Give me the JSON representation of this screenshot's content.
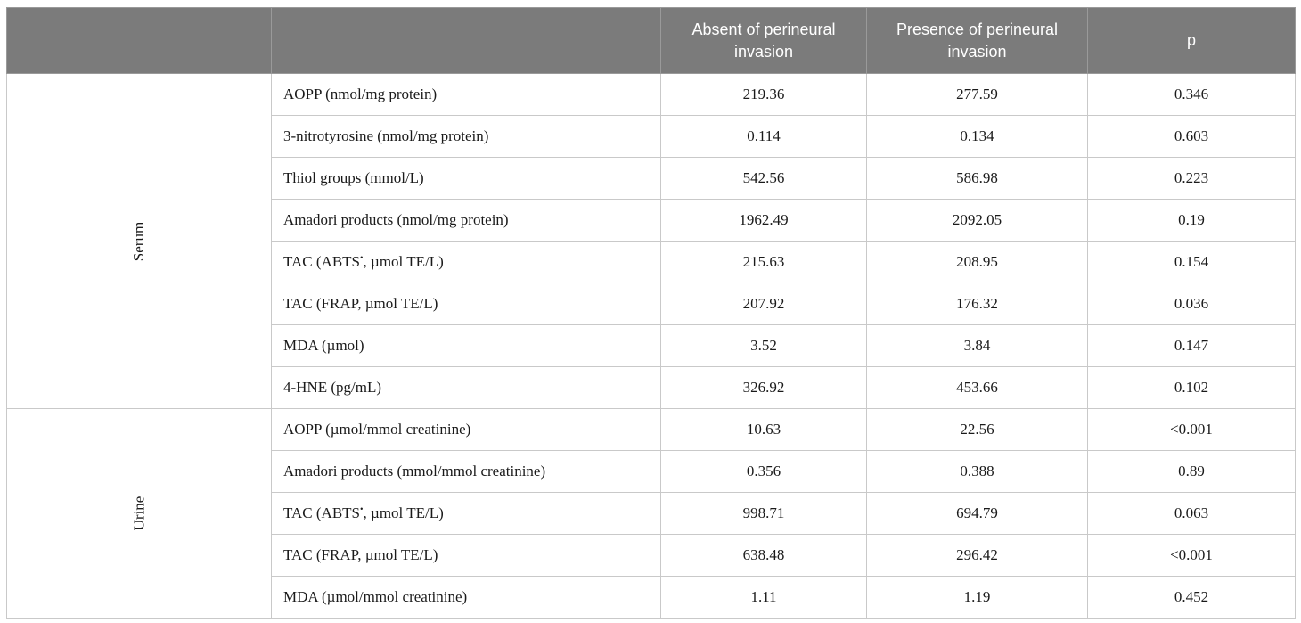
{
  "table": {
    "headers": [
      "",
      "",
      "Absent of perineural invasion",
      "Presence of perineural invasion",
      "p"
    ],
    "groups": [
      {
        "name": "Serum",
        "rows": [
          {
            "label": "AOPP (nmol/mg protein)",
            "absent": "219.36",
            "presence": "277.59",
            "p": "0.346"
          },
          {
            "label": "3-nitrotyrosine (nmol/mg protein)",
            "absent": "0.114",
            "presence": "0.134",
            "p": "0.603"
          },
          {
            "label": "Thiol groups (mmol/L)",
            "absent": "542.56",
            "presence": "586.98",
            "p": "0.223"
          },
          {
            "label": "Amadori products (nmol/mg protein)",
            "absent": "1962.49",
            "presence": "2092.05",
            "p": "0.19"
          },
          {
            "label_pre": "TAC (ABTS",
            "label_sup": "•",
            "label_post": ", µmol TE/L)",
            "absent": "215.63",
            "presence": "208.95",
            "p": "0.154"
          },
          {
            "label": "TAC (FRAP, µmol TE/L)",
            "absent": "207.92",
            "presence": "176.32",
            "p": "0.036"
          },
          {
            "label": "MDA (µmol)",
            "absent": "3.52",
            "presence": "3.84",
            "p": "0.147"
          },
          {
            "label": "4-HNE (pg/mL)",
            "absent": "326.92",
            "presence": "453.66",
            "p": "0.102"
          }
        ]
      },
      {
        "name": "Urine",
        "rows": [
          {
            "label": "AOPP (µmol/mmol creatinine)",
            "absent": "10.63",
            "presence": "22.56",
            "p": "<0.001"
          },
          {
            "label": "Amadori products (mmol/mmol creatinine)",
            "absent": "0.356",
            "presence": "0.388",
            "p": "0.89"
          },
          {
            "label_pre": "TAC (ABTS",
            "label_sup": "•",
            "label_post": ", µmol TE/L)",
            "absent": "998.71",
            "presence": "694.79",
            "p": "0.063"
          },
          {
            "label": "TAC (FRAP, µmol TE/L)",
            "absent": "638.48",
            "presence": "296.42",
            "p": "<0.001"
          },
          {
            "label": "MDA (µmol/mmol creatinine)",
            "absent": "1.11",
            "presence": "1.19",
            "p": "0.452"
          }
        ]
      }
    ]
  }
}
